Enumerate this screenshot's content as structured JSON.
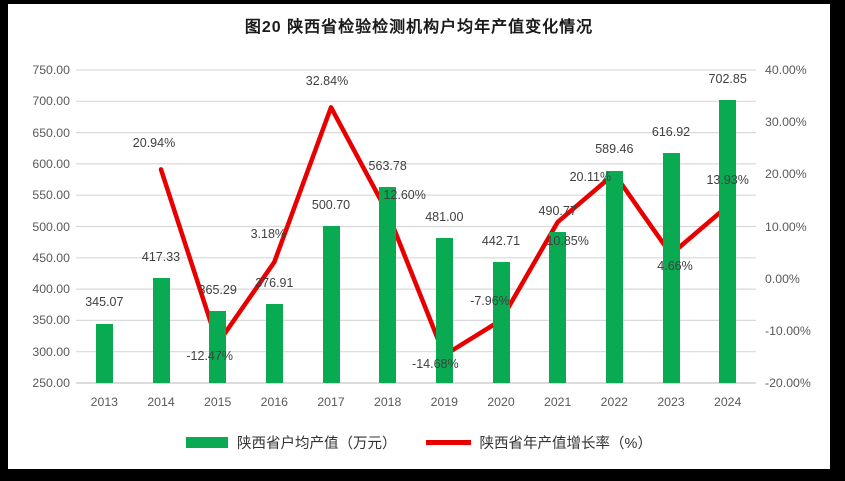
{
  "title": "图20  陕西省检验检测机构户均年产值变化情况",
  "chart_data": {
    "type": "bar",
    "subtype": "bar-line-combo",
    "categories": [
      "2013",
      "2014",
      "2015",
      "2016",
      "2017",
      "2018",
      "2019",
      "2020",
      "2021",
      "2022",
      "2023",
      "2024"
    ],
    "series": [
      {
        "name": "陕西省户均产值（万元）",
        "type": "bar",
        "axis": "left",
        "color": "#0aaa52",
        "values": [
          345.07,
          417.33,
          365.29,
          376.91,
          500.7,
          563.78,
          481.0,
          442.71,
          490.77,
          589.46,
          616.92,
          702.85
        ],
        "labels": [
          "345.07",
          "417.33",
          "365.29",
          "376.91",
          "500.70",
          "563.78",
          "481.00",
          "442.71",
          "490.77",
          "589.46",
          "616.92",
          "702.85"
        ]
      },
      {
        "name": "陕西省年产值增长率（%）",
        "type": "line",
        "axis": "right",
        "color": "#e80000",
        "start_index": 1,
        "values": [
          20.94,
          -12.47,
          3.18,
          32.84,
          12.6,
          -14.68,
          -7.96,
          10.85,
          20.11,
          4.66,
          13.93
        ],
        "labels": [
          "20.94%",
          "-12.47%",
          "3.18%",
          "32.84%",
          "12.60%",
          "-14.68%",
          "-7.96%",
          "10.85%",
          "20.11%",
          "4.66%",
          "13.93%"
        ]
      }
    ],
    "left_axis": {
      "min": 250,
      "max": 750,
      "step": 50,
      "tick_labels": [
        "250.00",
        "300.00",
        "350.00",
        "400.00",
        "450.00",
        "500.00",
        "550.00",
        "600.00",
        "650.00",
        "700.00",
        "750.00"
      ]
    },
    "right_axis": {
      "min": -20,
      "max": 40,
      "step": 10,
      "tick_labels": [
        "-20.00%",
        "-10.00%",
        "0.00%",
        "10.00%",
        "20.00%",
        "30.00%",
        "40.00%"
      ]
    },
    "grid": true,
    "legend_position": "bottom",
    "colors": {
      "grid": "#d9d9d9",
      "axis_line": "#c6c6c6",
      "axis_text": "#595959",
      "label_text": "#3f3f3f",
      "title_text": "#1a1a1a",
      "background": "#ffffff",
      "frame": "#000000"
    }
  }
}
